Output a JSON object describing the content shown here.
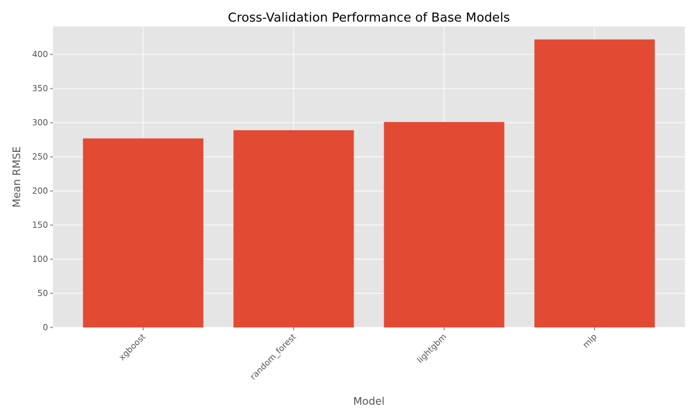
{
  "chart_data": {
    "type": "bar",
    "title": "Cross-Validation Performance of Base Models",
    "xlabel": "Model",
    "ylabel": "Mean RMSE",
    "categories": [
      "xgboost",
      "random_forest",
      "lightgbm",
      "mlp"
    ],
    "values": [
      277,
      289,
      301,
      422
    ],
    "ylim": [
      0,
      441
    ],
    "yticks": [
      0,
      50,
      100,
      150,
      200,
      250,
      300,
      350,
      400
    ],
    "grid": true,
    "legend": "none",
    "colors": {
      "bar": "#E24A33",
      "plot_background": "#E5E5E5",
      "grid": "#FFFFFF",
      "text": "#555555"
    }
  }
}
